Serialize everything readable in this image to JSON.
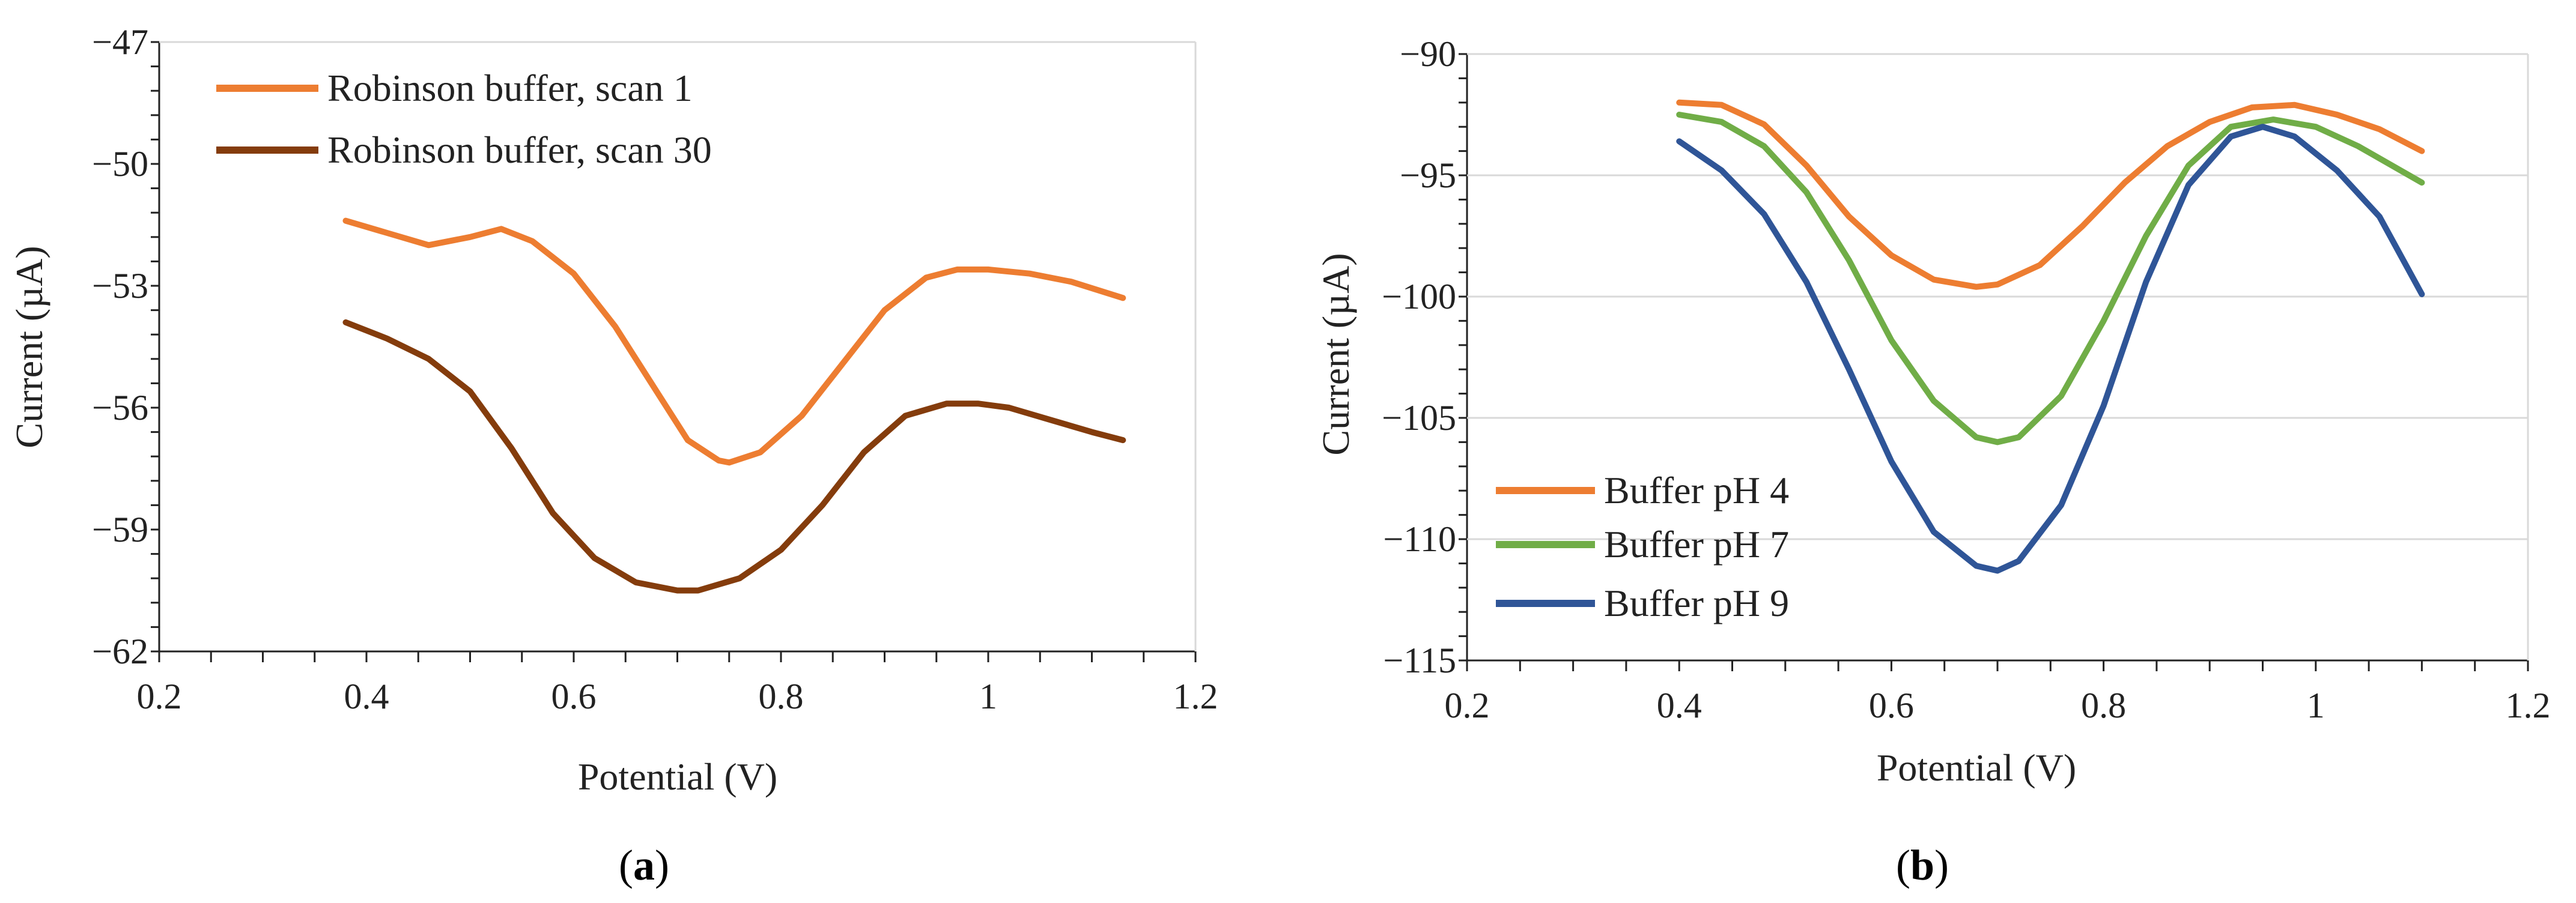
{
  "chart_data": [
    {
      "type": "line",
      "caption": "a",
      "title": "",
      "xlabel": "Potential (V)",
      "ylabel": "Current (µA)",
      "xlim": [
        0.2,
        1.2
      ],
      "ylim": [
        -62,
        -47
      ],
      "xticks": [
        0.2,
        0.4,
        0.6,
        0.8,
        1,
        1.2
      ],
      "yticks": [
        -62,
        -59,
        -56,
        -53,
        -50,
        -47
      ],
      "grid": false,
      "legend_position": "top-left",
      "colors": [
        "#ED7D31",
        "#843C0C"
      ],
      "series": [
        {
          "name": "Robinson buffer, scan 1",
          "x": [
            0.38,
            0.42,
            0.46,
            0.5,
            0.53,
            0.56,
            0.6,
            0.64,
            0.68,
            0.71,
            0.74,
            0.75,
            0.78,
            0.82,
            0.86,
            0.9,
            0.94,
            0.97,
            1.0,
            1.04,
            1.08,
            1.13
          ],
          "y": [
            -51.4,
            -51.7,
            -52.0,
            -51.8,
            -51.6,
            -51.9,
            -52.7,
            -54.0,
            -55.6,
            -56.8,
            -57.3,
            -57.35,
            -57.1,
            -56.2,
            -54.9,
            -53.6,
            -52.8,
            -52.6,
            -52.6,
            -52.7,
            -52.9,
            -53.3
          ]
        },
        {
          "name": "Robinson buffer, scan 30",
          "x": [
            0.38,
            0.42,
            0.46,
            0.5,
            0.54,
            0.58,
            0.62,
            0.66,
            0.7,
            0.72,
            0.76,
            0.8,
            0.84,
            0.88,
            0.92,
            0.96,
            0.99,
            1.02,
            1.06,
            1.1,
            1.13
          ],
          "y": [
            -53.9,
            -54.3,
            -54.8,
            -55.6,
            -57.0,
            -58.6,
            -59.7,
            -60.3,
            -60.5,
            -60.5,
            -60.2,
            -59.5,
            -58.4,
            -57.1,
            -56.2,
            -55.9,
            -55.9,
            -56.0,
            -56.3,
            -56.6,
            -56.8
          ]
        }
      ]
    },
    {
      "type": "line",
      "caption": "b",
      "title": "",
      "xlabel": "Potential (V)",
      "ylabel": "Current (µA)",
      "xlim": [
        0.2,
        1.2
      ],
      "ylim": [
        -115,
        -90
      ],
      "xticks": [
        0.2,
        0.4,
        0.6,
        0.8,
        1,
        1.2
      ],
      "yticks": [
        -115,
        -110,
        -105,
        -100,
        -95,
        -90
      ],
      "grid": true,
      "legend_position": "bottom-left",
      "colors": [
        "#ED7D31",
        "#70AD47",
        "#2F5597"
      ],
      "series": [
        {
          "name": "Buffer pH 4",
          "x": [
            0.4,
            0.44,
            0.48,
            0.52,
            0.56,
            0.6,
            0.64,
            0.68,
            0.7,
            0.74,
            0.78,
            0.82,
            0.86,
            0.9,
            0.94,
            0.98,
            1.02,
            1.06,
            1.1
          ],
          "y": [
            -92.0,
            -92.1,
            -92.9,
            -94.6,
            -96.7,
            -98.3,
            -99.3,
            -99.6,
            -99.5,
            -98.7,
            -97.1,
            -95.3,
            -93.8,
            -92.8,
            -92.2,
            -92.1,
            -92.5,
            -93.1,
            -94.0
          ]
        },
        {
          "name": "Buffer pH 7",
          "x": [
            0.4,
            0.44,
            0.48,
            0.52,
            0.56,
            0.6,
            0.64,
            0.68,
            0.7,
            0.72,
            0.76,
            0.8,
            0.84,
            0.88,
            0.92,
            0.96,
            1.0,
            1.04,
            1.1
          ],
          "y": [
            -92.5,
            -92.8,
            -93.8,
            -95.7,
            -98.5,
            -101.8,
            -104.3,
            -105.8,
            -106.0,
            -105.8,
            -104.1,
            -101.0,
            -97.5,
            -94.6,
            -93.0,
            -92.7,
            -93.0,
            -93.8,
            -95.3
          ]
        },
        {
          "name": "Buffer pH 9",
          "x": [
            0.4,
            0.44,
            0.48,
            0.52,
            0.56,
            0.6,
            0.64,
            0.68,
            0.7,
            0.72,
            0.76,
            0.8,
            0.84,
            0.88,
            0.92,
            0.95,
            0.98,
            1.02,
            1.06,
            1.1
          ],
          "y": [
            -93.6,
            -94.8,
            -96.6,
            -99.4,
            -103.0,
            -106.8,
            -109.7,
            -111.1,
            -111.3,
            -110.9,
            -108.6,
            -104.5,
            -99.4,
            -95.4,
            -93.4,
            -93.0,
            -93.4,
            -94.8,
            -96.7,
            -99.9
          ]
        }
      ]
    }
  ]
}
